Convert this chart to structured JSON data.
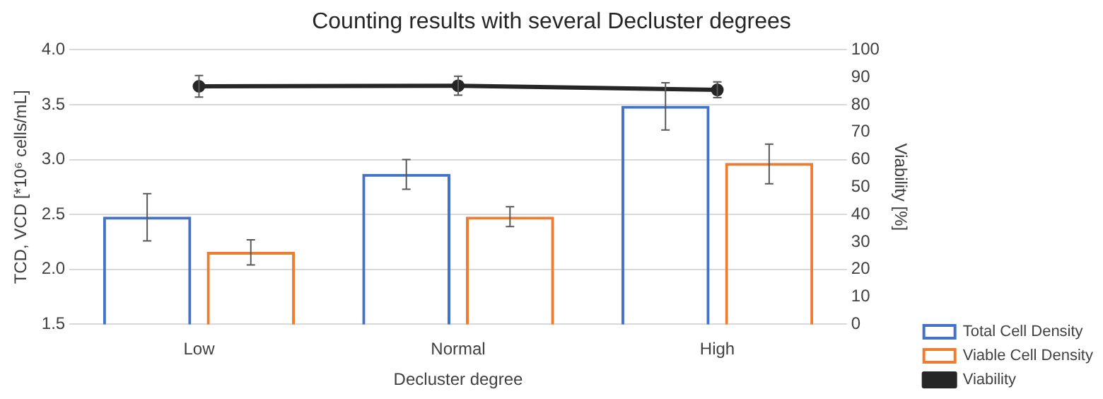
{
  "chart_data": {
    "type": "bar",
    "title": "Counting results with several Decluster degrees",
    "xlabel": "Decluster degree",
    "ylabel": "TCD, VCD [*10⁶ cells/mL]",
    "y2label": "Viability [%]",
    "categories": [
      "Low",
      "Normal",
      "High"
    ],
    "series": [
      {
        "name": "Total Cell Density",
        "color": "#4472c4",
        "values": [
          2.48,
          2.87,
          3.49
        ],
        "errors": [
          [
            2.26,
            2.69
          ],
          [
            2.73,
            3.0
          ],
          [
            3.27,
            3.7
          ]
        ]
      },
      {
        "name": "Viable Cell Density",
        "color": "#ed7d31",
        "values": [
          2.16,
          2.48,
          2.97
        ],
        "errors": [
          [
            2.04,
            2.27
          ],
          [
            2.39,
            2.57
          ],
          [
            2.78,
            3.14
          ]
        ]
      },
      {
        "name": "Viability",
        "type": "line",
        "axis": "y2",
        "color": "#262626",
        "values": [
          86.7,
          86.9,
          85.4
        ],
        "errors": [
          [
            82.8,
            90.6
          ],
          [
            83.5,
            90.4
          ],
          [
            82.6,
            88.3
          ]
        ]
      }
    ],
    "ylim": [
      1.5,
      4.0
    ],
    "yticks": [
      1.5,
      {
        "value": 2,
        "label": "2.0"
      },
      2.5,
      {
        "value": 3,
        "label": "3.0"
      },
      3.5,
      {
        "value": 4,
        "label": "4.0"
      }
    ],
    "y2lim": [
      0,
      100
    ],
    "y2ticks": [
      0,
      10,
      20,
      30,
      40,
      50,
      60,
      70,
      80,
      90,
      100
    ],
    "grid": "y",
    "legend": "right",
    "marker": "circle"
  }
}
